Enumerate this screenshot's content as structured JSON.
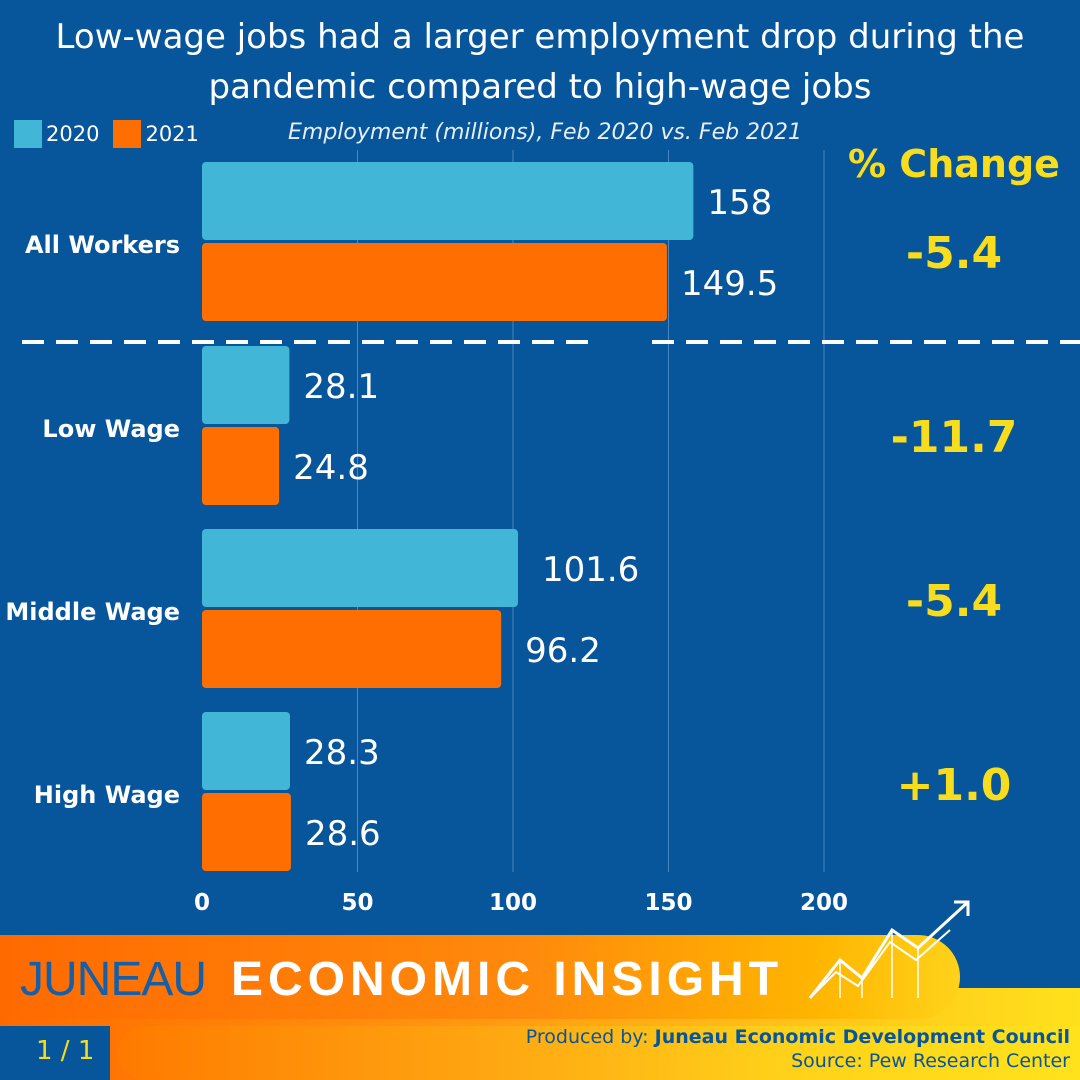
{
  "title_line1": "Low-wage jobs had a larger employment drop during the",
  "title_line2": "pandemic compared to high-wage jobs",
  "subtitle": "Employment (millions), Feb 2020 vs. Feb 2021",
  "pct_change_title": "% Change",
  "colors": {
    "background": "#07559a",
    "s2020": "#41b6d6",
    "s2021": "#ff6e00",
    "highlight": "#f8dc1e"
  },
  "chart_data": {
    "type": "bar",
    "orientation": "horizontal",
    "categories": [
      "All Workers",
      "Low Wage",
      "Middle Wage",
      "High Wage"
    ],
    "series": [
      {
        "name": "2020",
        "values": [
          158,
          28.1,
          101.6,
          28.3
        ],
        "labels": [
          "158",
          "28.1",
          "101.6",
          "28.3"
        ]
      },
      {
        "name": "2021",
        "values": [
          149.5,
          24.8,
          96.2,
          28.6
        ],
        "labels": [
          "149.5",
          "24.8",
          "96.2",
          "28.6"
        ]
      }
    ],
    "pct_change": [
      "-5.4",
      "-11.7",
      "-5.4",
      "+1.0"
    ],
    "xlim": [
      0,
      200
    ],
    "xticks": [
      "0",
      "50",
      "100",
      "150",
      "200"
    ],
    "grid": true,
    "legend": "top-left"
  },
  "footer": {
    "brand_part1": "JUNEAU",
    "brand_part2": "ECONOMIC INSIGHT",
    "produced_label": "Produced by:",
    "produced_by": "Juneau Economic Development Council",
    "source": "Source: Pew Research Center",
    "page": "1 / 1"
  }
}
